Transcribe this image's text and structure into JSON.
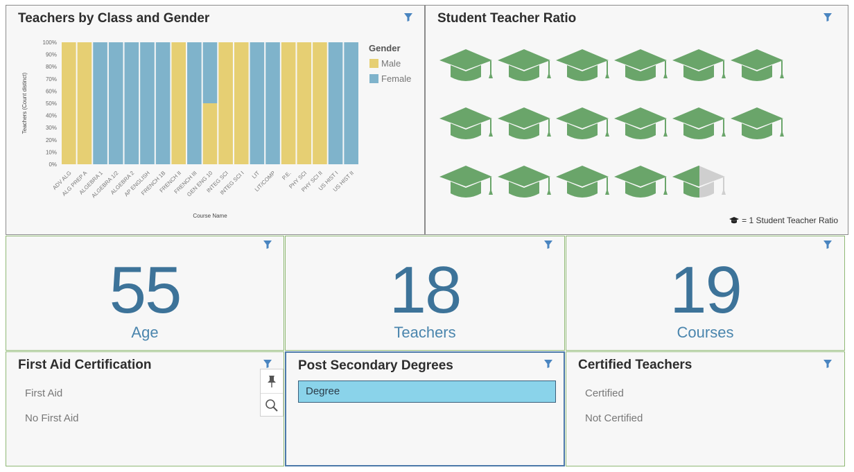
{
  "tiles": {
    "teachers_chart": {
      "title": "Teachers by Class and Gender",
      "legend_title": "Gender",
      "legend_items": [
        "Male",
        "Female"
      ]
    },
    "ratio": {
      "title": "Student Teacher Ratio",
      "value": 16.5,
      "legend_text": "= 1 Student Teacher Ratio",
      "icon": "graduation-cap-icon",
      "icon_color": "#6aa56a",
      "empty_color": "#cfcfcf"
    },
    "age": {
      "value": "55",
      "label": "Age"
    },
    "teachers": {
      "value": "18",
      "label": "Teachers"
    },
    "courses": {
      "value": "19",
      "label": "Courses"
    },
    "first_aid": {
      "title": "First Aid Certification",
      "items": [
        "First Aid",
        "No First Aid"
      ]
    },
    "degrees": {
      "title": "Post Secondary Degrees",
      "items": [
        "Degree"
      ]
    },
    "certified": {
      "title": "Certified Teachers",
      "items": [
        "Certified",
        "Not Certified"
      ]
    }
  },
  "popup_toolbar": {
    "icons": [
      "pin-icon",
      "zoom-icon"
    ]
  },
  "colors": {
    "male": "#e6cf73",
    "female": "#7fb3cb",
    "accent": "#3d7399",
    "filter": "#4a85c0"
  },
  "chart_data": {
    "type": "bar",
    "stacked": "percent",
    "xlabel": "Course Name",
    "ylabel": "Teachers (Count distinct)",
    "yticks": [
      "100%",
      "90%",
      "80%",
      "70%",
      "60%",
      "50%",
      "40%",
      "30%",
      "20%",
      "10%",
      "0%"
    ],
    "ylim": [
      0,
      100
    ],
    "categories": [
      "ADV ALG",
      "ALG PREP A",
      "ALGEBRA 1",
      "ALGEBRA 1/2",
      "ALGEBRA 2",
      "AP ENGLISH",
      "FRENCH 1B",
      "FRENCH II",
      "FRENCH III",
      "GEN ENG 10",
      "INTEG SCI",
      "INTEG SCI I",
      "LIT",
      "LIT/COMP",
      "P.E.",
      "PHY SCI",
      "PHY SCI II",
      "US HIST I",
      "US HIST II"
    ],
    "series": [
      {
        "name": "Male",
        "values": [
          100,
          100,
          0,
          0,
          0,
          0,
          0,
          100,
          0,
          50,
          100,
          100,
          0,
          0,
          100,
          100,
          100,
          0,
          0
        ]
      },
      {
        "name": "Female",
        "values": [
          0,
          0,
          100,
          100,
          100,
          100,
          100,
          0,
          100,
          50,
          0,
          0,
          100,
          100,
          0,
          0,
          0,
          100,
          100
        ]
      }
    ],
    "legend_position": "right",
    "grid": false
  }
}
